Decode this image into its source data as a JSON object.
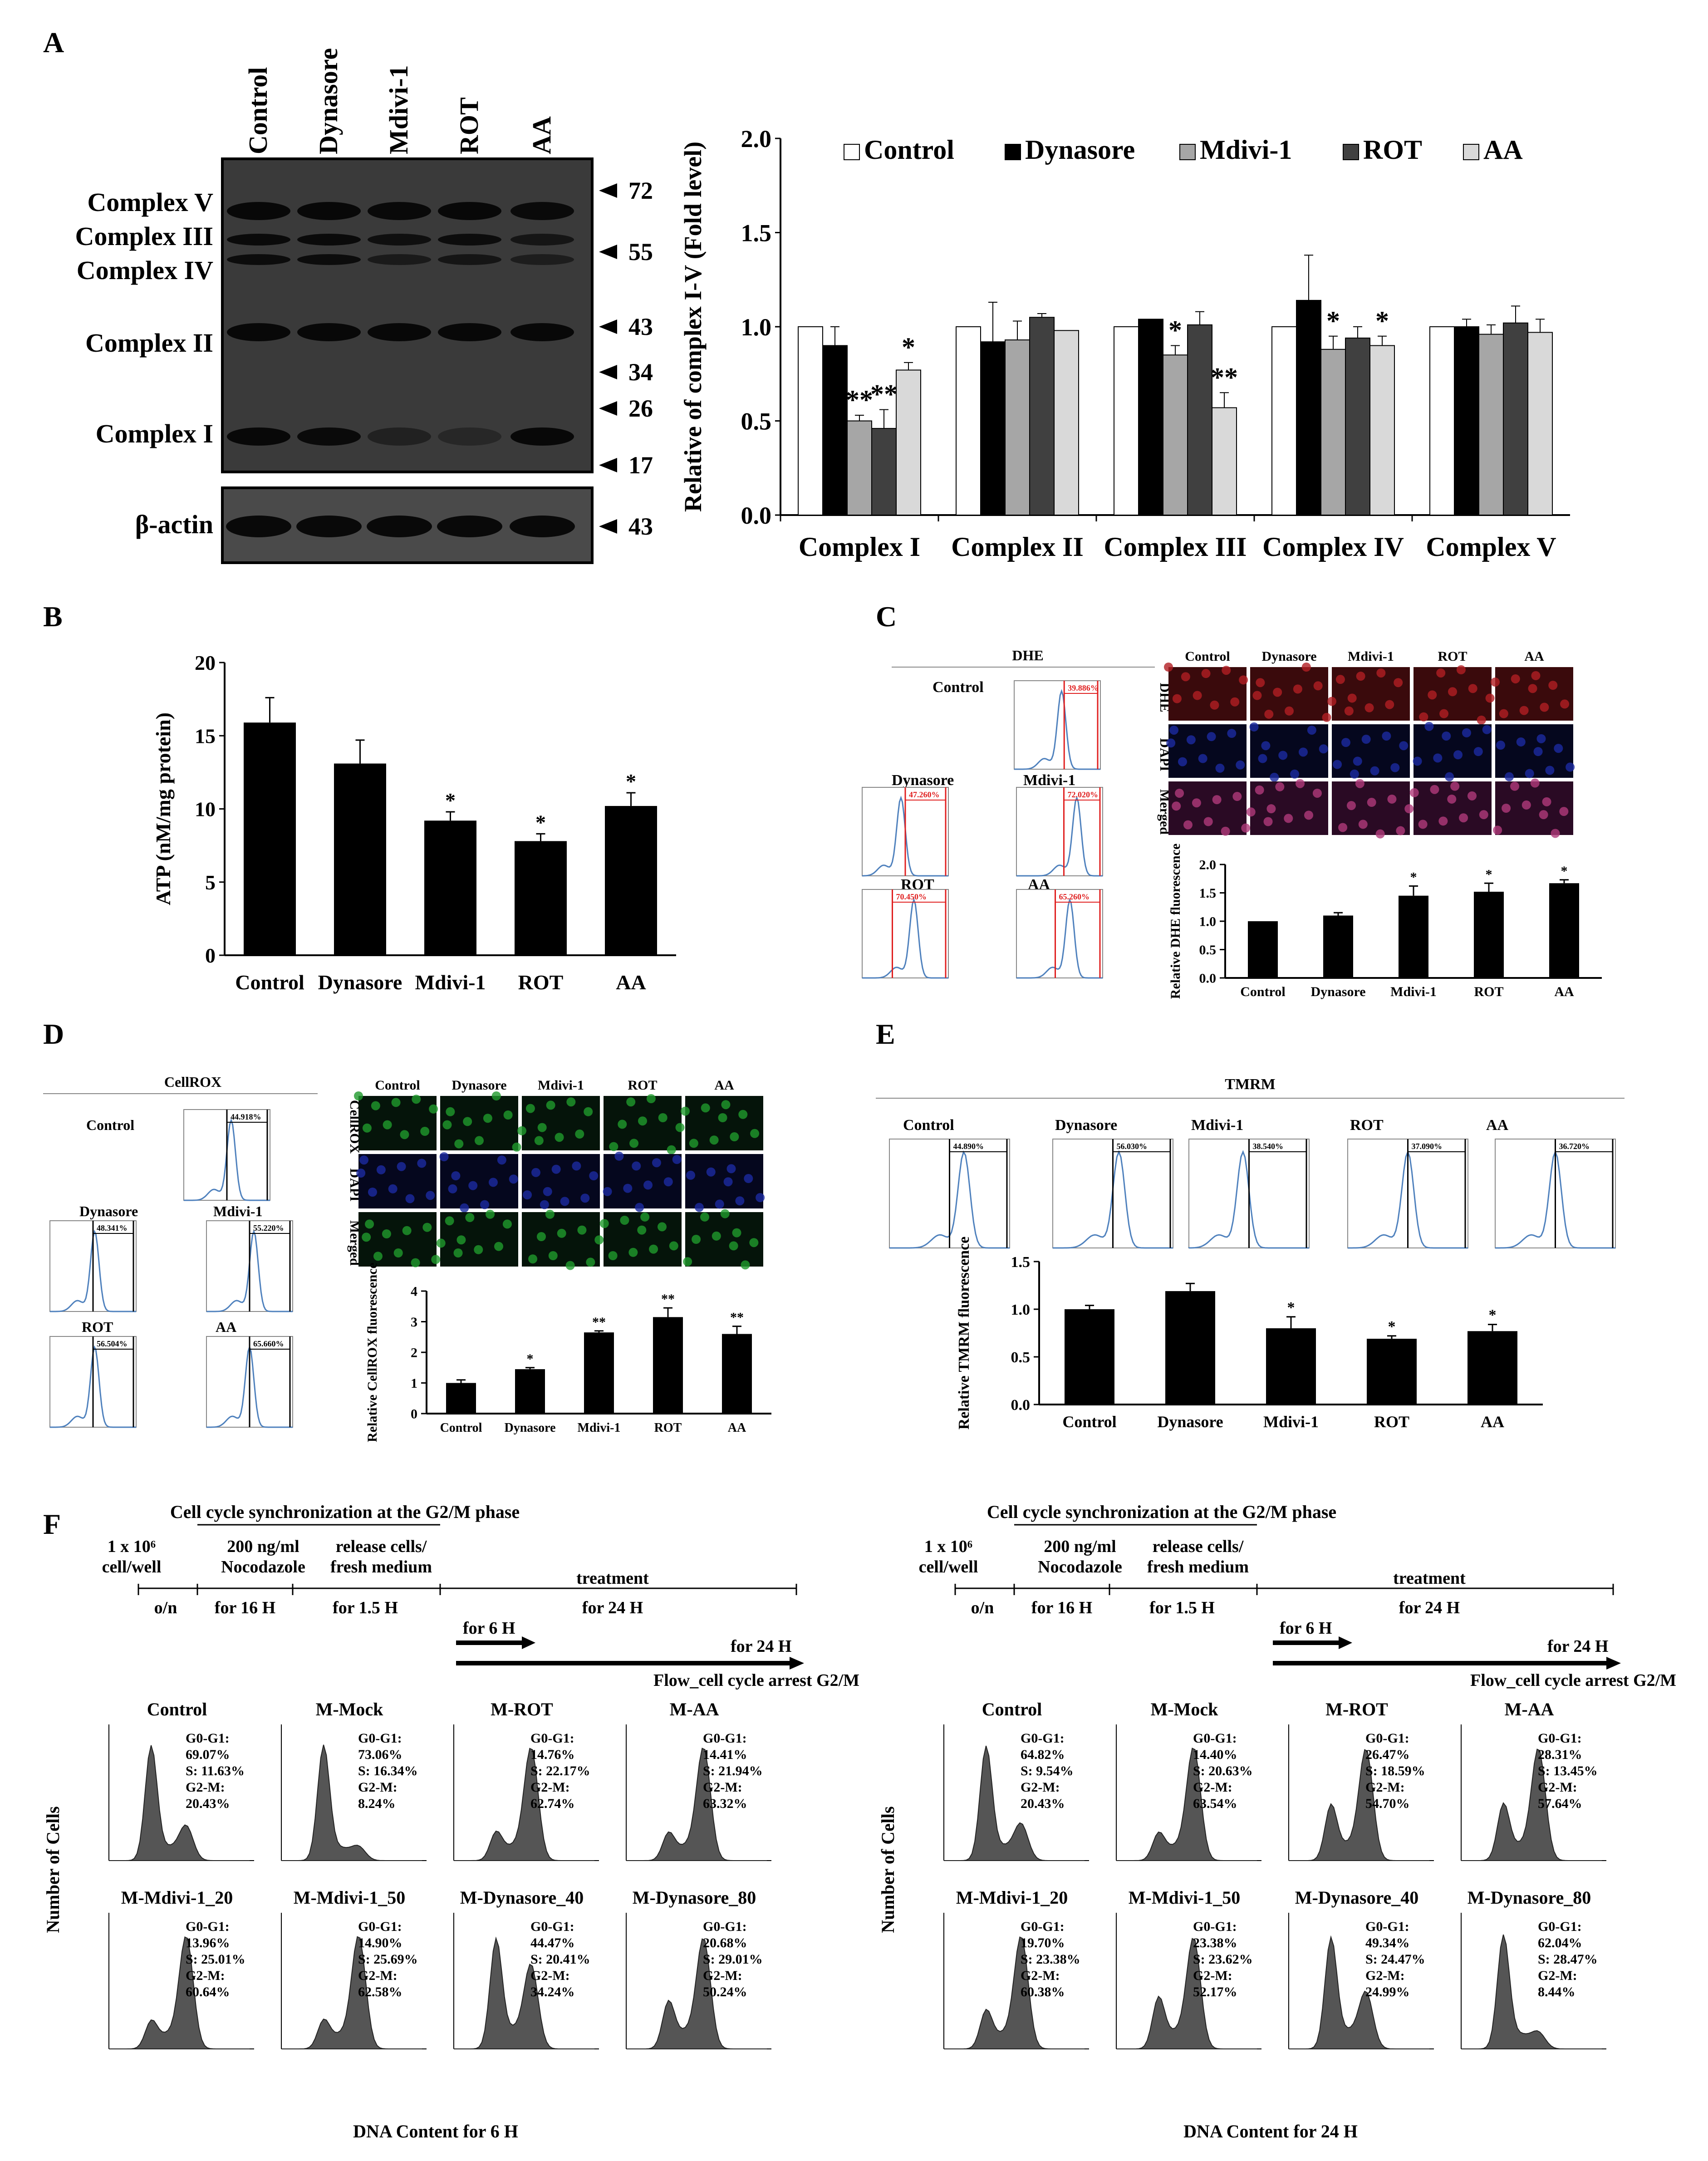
{
  "panel_labels": {
    "A": "A",
    "B": "B",
    "C": "C",
    "D": "D",
    "E": "E",
    "F": "F"
  },
  "colors": {
    "control": "#ffffff",
    "dynasore": "#000000",
    "mdivi": "#a6a6a6",
    "rot": "#404040",
    "aa": "#d9d9d9",
    "flow_line": "#4f81bd",
    "gate": "#e02020",
    "ros_red": "#b21e23",
    "dapi": "#1c2aa0",
    "cellrox": "#1f9a2c"
  },
  "blot": {
    "lanes": [
      "Control",
      "Dynasore",
      "Mdivi-1",
      "ROT",
      "AA"
    ],
    "bands": [
      "Complex V",
      "Complex III",
      "Complex IV",
      "Complex II",
      "Complex I"
    ],
    "loading": "β-actin",
    "markers": [
      "72",
      "55",
      "43",
      "34",
      "26",
      "17"
    ],
    "actin_marker": "43"
  },
  "chart_data": [
    {
      "id": "A",
      "type": "bar",
      "title": "",
      "ylabel": "Relative of complex I-V (Fold level)",
      "ylim": [
        0,
        2.0
      ],
      "yticks": [
        "0.0",
        "0.5",
        "1.0",
        "1.5",
        "2.0"
      ],
      "categories": [
        "Complex I",
        "Complex II",
        "Complex III",
        "Complex IV",
        "Complex V"
      ],
      "legend": [
        "Control",
        "Dynasore",
        "Mdivi-1",
        "ROT",
        "AA"
      ],
      "series": [
        {
          "name": "Control",
          "values": [
            1.0,
            1.0,
            1.0,
            1.0,
            1.0
          ],
          "err": [
            0,
            0,
            0,
            0,
            0
          ]
        },
        {
          "name": "Dynasore",
          "values": [
            0.9,
            0.92,
            1.04,
            1.14,
            1.0
          ],
          "err": [
            0.1,
            0.21,
            0,
            0.24,
            0.04
          ]
        },
        {
          "name": "Mdivi-1",
          "values": [
            0.5,
            0.93,
            0.85,
            0.88,
            0.96
          ],
          "err": [
            0.03,
            0.1,
            0.05,
            0.07,
            0.05
          ]
        },
        {
          "name": "ROT",
          "values": [
            0.46,
            1.05,
            1.01,
            0.94,
            1.02
          ],
          "err": [
            0.1,
            0.02,
            0.07,
            0.06,
            0.09
          ]
        },
        {
          "name": "AA",
          "values": [
            0.77,
            0.98,
            0.57,
            0.9,
            0.97
          ],
          "err": [
            0.04,
            0,
            0.08,
            0.05,
            0.07
          ]
        }
      ],
      "annotations": [
        {
          "cat": 0,
          "series": 2,
          "text": "**"
        },
        {
          "cat": 0,
          "series": 3,
          "text": "**"
        },
        {
          "cat": 0,
          "series": 4,
          "text": "*"
        },
        {
          "cat": 2,
          "series": 2,
          "text": "*"
        },
        {
          "cat": 2,
          "series": 4,
          "text": "**"
        },
        {
          "cat": 3,
          "series": 2,
          "text": "*"
        },
        {
          "cat": 3,
          "series": 4,
          "text": "*"
        }
      ]
    },
    {
      "id": "B",
      "type": "bar",
      "title": "",
      "ylabel": "ATP (nM/mg protein)",
      "ylim": [
        0,
        20
      ],
      "yticks": [
        "0",
        "5",
        "10",
        "15",
        "20"
      ],
      "categories": [
        "Control",
        "Dynasore",
        "Mdivi-1",
        "ROT",
        "AA"
      ],
      "values": [
        15.9,
        13.1,
        9.2,
        7.8,
        10.2
      ],
      "err": [
        1.7,
        1.6,
        0.6,
        0.5,
        0.9
      ],
      "sig": [
        "",
        "",
        "*",
        "*",
        "*"
      ]
    },
    {
      "id": "C",
      "type": "bar",
      "title": "",
      "ylabel": "Relative DHE fluorescence",
      "ylim": [
        0,
        2.0
      ],
      "yticks": [
        "0.0",
        "0.5",
        "1.0",
        "1.5",
        "2.0"
      ],
      "categories": [
        "Control",
        "Dynasore",
        "Mdivi-1",
        "ROT",
        "AA"
      ],
      "values": [
        1.0,
        1.1,
        1.45,
        1.52,
        1.67
      ],
      "err": [
        0,
        0.05,
        0.17,
        0.15,
        0.06
      ],
      "sig": [
        "",
        "",
        "*",
        "*",
        "*"
      ]
    },
    {
      "id": "D",
      "type": "bar",
      "title": "",
      "ylabel": "Relative CellROX fluorescence",
      "ylim": [
        0,
        4
      ],
      "yticks": [
        "0",
        "1",
        "2",
        "3",
        "4"
      ],
      "categories": [
        "Control",
        "Dynasore",
        "Mdivi-1",
        "ROT",
        "AA"
      ],
      "values": [
        1.0,
        1.45,
        2.65,
        3.15,
        2.6
      ],
      "err": [
        0.1,
        0.05,
        0.05,
        0.3,
        0.25
      ],
      "sig": [
        "",
        "*",
        "**",
        "**",
        "**"
      ]
    },
    {
      "id": "E",
      "type": "bar",
      "title": "",
      "ylabel": "Relative TMRM fluorescence",
      "ylim": [
        0,
        1.5
      ],
      "yticks": [
        "0.0",
        "0.5",
        "1.0",
        "1.5"
      ],
      "categories": [
        "Control",
        "Dynasore",
        "Mdivi-1",
        "ROT",
        "AA"
      ],
      "values": [
        1.0,
        1.19,
        0.8,
        0.69,
        0.77
      ],
      "err": [
        0.04,
        0.08,
        0.12,
        0.03,
        0.07
      ],
      "sig": [
        "",
        "",
        "*",
        "*",
        "*"
      ]
    }
  ],
  "panelC": {
    "header": "DHE",
    "flow": [
      {
        "name": "Control",
        "pct": "39.886%"
      },
      {
        "name": "Dynasore",
        "pct": "47.260%"
      },
      {
        "name": "Mdivi-1",
        "pct": "72.020%"
      },
      {
        "name": "ROT",
        "pct": "70.450%"
      },
      {
        "name": "AA",
        "pct": "65.260%"
      }
    ],
    "rows": [
      "DHE",
      "DAPI",
      "Merged"
    ],
    "cols": [
      "Control",
      "Dynasore",
      "Mdivi-1",
      "ROT",
      "AA"
    ]
  },
  "panelD": {
    "header": "CellROX",
    "flow": [
      {
        "name": "Control",
        "pct": "44.918%"
      },
      {
        "name": "Dynasore",
        "pct": "48.341%"
      },
      {
        "name": "Mdivi-1",
        "pct": "55.220%"
      },
      {
        "name": "ROT",
        "pct": "56.504%"
      },
      {
        "name": "AA",
        "pct": "65.660%"
      }
    ],
    "rows": [
      "CellROX",
      "DAPI",
      "Merged"
    ],
    "cols": [
      "Control",
      "Dynasore",
      "Mdivi-1",
      "ROT",
      "AA"
    ]
  },
  "panelE": {
    "header": "TMRM",
    "flow": [
      {
        "name": "Control",
        "pct": "44.890%"
      },
      {
        "name": "Dynasore",
        "pct": "56.030%"
      },
      {
        "name": "Mdivi-1",
        "pct": "38.540%"
      },
      {
        "name": "ROT",
        "pct": "37.090%"
      },
      {
        "name": "AA",
        "pct": "36.720%"
      }
    ]
  },
  "panelF": {
    "sync_title": "Cell cycle synchronization at the G2/M phase",
    "seed": "1 x 10⁶",
    "seed2": "cell/well",
    "noc1": "200 ng/ml",
    "noc2": "Nocodazole",
    "rel1": "release cells/",
    "rel2": "fresh medium",
    "treatment": "treatment",
    "on": "o/n",
    "t16": "for 16 H",
    "t15": "for 1.5 H",
    "t24": "for 24 H",
    "for6": "for 6 H",
    "flow": "Flow_cell cycle arrest G2/M",
    "ylabel": "Number of Cells",
    "left": {
      "xlabel": "DNA Content for 6 H",
      "hists": [
        {
          "name": "Control",
          "g0": "69.07%",
          "s": "11.63%",
          "g2": "20.43%"
        },
        {
          "name": "M-Mock",
          "g0": "73.06%",
          "s": "16.34%",
          "g2": "8.24%"
        },
        {
          "name": "M-ROT",
          "g0": "14.76%",
          "s": "22.17%",
          "g2": "62.74%"
        },
        {
          "name": "M-AA",
          "g0": "14.41%",
          "s": "21.94%",
          "g2": "63.32%"
        },
        {
          "name": "M-Mdivi-1_20",
          "g0": "13.96%",
          "s": "25.01%",
          "g2": "60.64%"
        },
        {
          "name": "M-Mdivi-1_50",
          "g0": "14.90%",
          "s": "25.69%",
          "g2": "62.58%"
        },
        {
          "name": "M-Dynasore_40",
          "g0": "44.47%",
          "s": "20.41%",
          "g2": "34.24%"
        },
        {
          "name": "M-Dynasore_80",
          "g0": "20.68%",
          "s": "29.01%",
          "g2": "50.24%"
        }
      ]
    },
    "right": {
      "xlabel": "DNA Content for 24 H",
      "hists": [
        {
          "name": "Control",
          "g0": "64.82%",
          "s": "9.54%",
          "g2": "20.43%"
        },
        {
          "name": "M-Mock",
          "g0": "14.40%",
          "s": "20.63%",
          "g2": "63.54%"
        },
        {
          "name": "M-ROT",
          "g0": "26.47%",
          "s": "18.59%",
          "g2": "54.70%"
        },
        {
          "name": "M-AA",
          "g0": "28.31%",
          "s": "13.45%",
          "g2": "57.64%"
        },
        {
          "name": "M-Mdivi-1_20",
          "g0": "19.70%",
          "s": "23.38%",
          "g2": "60.38%"
        },
        {
          "name": "M-Mdivi-1_50",
          "g0": "23.38%",
          "s": "23.62%",
          "g2": "52.17%"
        },
        {
          "name": "M-Dynasore_40",
          "g0": "49.34%",
          "s": "24.47%",
          "g2": "24.99%"
        },
        {
          "name": "M-Dynasore_80",
          "g0": "62.04%",
          "s": "28.47%",
          "g2": "8.44%"
        }
      ]
    },
    "labels": {
      "g0": "G0-G1:",
      "s": "S:",
      "g2": "G2-M:"
    }
  }
}
